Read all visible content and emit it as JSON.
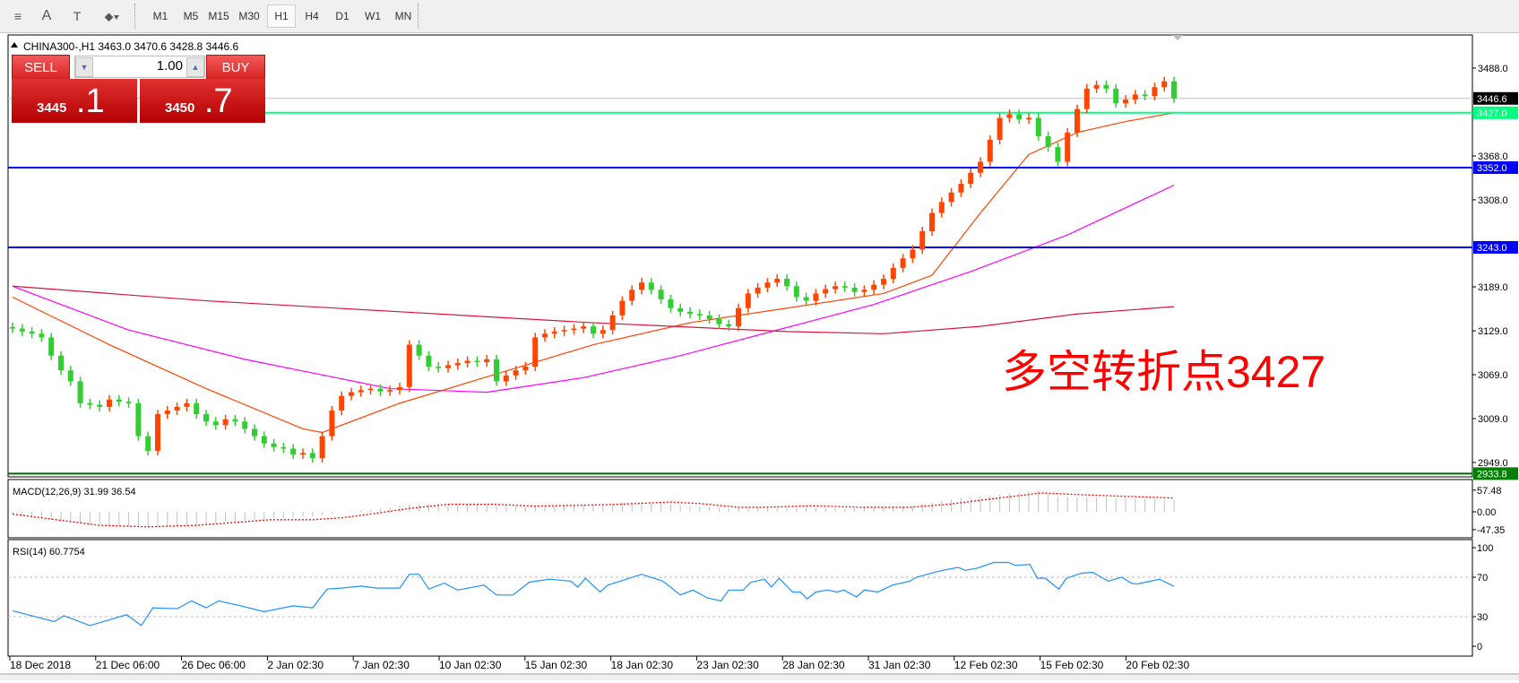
{
  "toolbar": {
    "tools": [
      {
        "name": "fibonacci-fan-icon",
        "glyph": "≡"
      },
      {
        "name": "text-icon",
        "glyph": "A"
      },
      {
        "name": "text-label-icon",
        "glyph": "T"
      },
      {
        "name": "arrows-icon",
        "glyph": "⬥▾"
      }
    ],
    "timeframes": [
      "M1",
      "M5",
      "M15",
      "M30",
      "H1",
      "H4",
      "D1",
      "W1",
      "MN"
    ],
    "active_timeframe": "H1"
  },
  "chart": {
    "header": "CHINA300-,H1  3463.0 3470.6 3428.8 3446.6",
    "annotation": "多空转折点3427",
    "annotation_color": "#ff0000"
  },
  "trade_panel": {
    "sell_label": "SELL",
    "buy_label": "BUY",
    "lot": "1.00",
    "sell_price_small": "3445",
    "sell_price_big": ".1",
    "buy_price_small": "3450",
    "buy_price_big": ".7"
  },
  "chart_data": [
    {
      "type": "candlestick",
      "symbol": "CHINA300-",
      "timeframe": "H1",
      "ohlc_current": {
        "open": 3463.0,
        "high": 3470.6,
        "low": 3428.8,
        "close": 3446.6
      },
      "price_ticks": [
        "3488.0",
        "3368.0",
        "3308.0",
        "3189.0",
        "3129.0",
        "3069.0",
        "3009.0",
        "2949.0"
      ],
      "ylim": [
        2926,
        3537
      ],
      "date_ticks": [
        "18 Dec 2018",
        "21 Dec 06:00",
        "26 Dec 06:00",
        "2 Jan 02:30",
        "7 Jan 02:30",
        "10 Jan 02:30",
        "15 Jan 02:30",
        "18 Jan 02:30",
        "23 Jan 02:30",
        "28 Jan 02:30",
        "31 Jan 02:30",
        "12 Feb 02:30",
        "15 Feb 02:30",
        "20 Feb 02:30"
      ],
      "up_color": "#ff4500",
      "down_color": "#32cd32",
      "close": [
        3132,
        3128,
        3125,
        3120,
        3095,
        3075,
        3060,
        3030,
        3028,
        3025,
        3035,
        3032,
        3030,
        2985,
        2965,
        3015,
        3020,
        3025,
        3030,
        3015,
        3005,
        3000,
        3008,
        3005,
        2995,
        2985,
        2975,
        2970,
        2968,
        2960,
        2962,
        2955,
        2985,
        3020,
        3040,
        3045,
        3048,
        3050,
        3046,
        3048,
        3052,
        3110,
        3095,
        3080,
        3078,
        3082,
        3085,
        3088,
        3086,
        3090,
        3060,
        3068,
        3075,
        3080,
        3120,
        3125,
        3128,
        3130,
        3132,
        3135,
        3125,
        3130,
        3150,
        3170,
        3185,
        3195,
        3185,
        3172,
        3160,
        3155,
        3152,
        3150,
        3145,
        3138,
        3135,
        3160,
        3180,
        3188,
        3195,
        3200,
        3190,
        3175,
        3170,
        3180,
        3186,
        3190,
        3188,
        3182,
        3185,
        3192,
        3200,
        3215,
        3228,
        3240,
        3265,
        3290,
        3305,
        3318,
        3330,
        3345,
        3360,
        3390,
        3420,
        3425,
        3418,
        3420,
        3395,
        3380,
        3360,
        3400,
        3432,
        3460,
        3465,
        3460,
        3440,
        3445,
        3452,
        3450,
        3462,
        3470,
        3446.6
      ],
      "moving_averages": [
        {
          "color": "#ff4500",
          "points": [
            [
              0,
              3175
            ],
            [
              10,
              3110
            ],
            [
              20,
              3050
            ],
            [
              30,
              2995
            ],
            [
              32,
              2990
            ],
            [
              40,
              3030
            ],
            [
              50,
              3070
            ],
            [
              60,
              3110
            ],
            [
              70,
              3140
            ],
            [
              80,
              3160
            ],
            [
              90,
              3180
            ],
            [
              95,
              3205
            ],
            [
              100,
              3290
            ],
            [
              105,
              3370
            ],
            [
              110,
              3400
            ],
            [
              115,
              3415
            ],
            [
              120,
              3427
            ]
          ]
        },
        {
          "color": "#ff00ff",
          "points": [
            [
              0,
              3190
            ],
            [
              12,
              3130
            ],
            [
              24,
              3090
            ],
            [
              39,
              3050
            ],
            [
              49,
              3045
            ],
            [
              59,
              3065
            ],
            [
              69,
              3095
            ],
            [
              79,
              3130
            ],
            [
              89,
              3165
            ],
            [
              99,
              3210
            ],
            [
              109,
              3260
            ],
            [
              120,
              3328
            ]
          ]
        },
        {
          "color": "#dc143c",
          "points": [
            [
              0,
              3190
            ],
            [
              20,
              3170
            ],
            [
              40,
              3155
            ],
            [
              60,
              3140
            ],
            [
              80,
              3128
            ],
            [
              90,
              3125
            ],
            [
              100,
              3135
            ],
            [
              110,
              3152
            ],
            [
              120,
              3162
            ]
          ]
        }
      ],
      "levels": [
        {
          "value": "3446.6",
          "color": "#c0c0c0",
          "label_bg": "#000000",
          "label_fg": "#ffffff"
        },
        {
          "value": "3427.0",
          "color": "#00ff7f",
          "label_bg": "#00ff7f",
          "label_fg": "#ffffff"
        },
        {
          "value": "3352.0",
          "color": "#0000ff",
          "label_bg": "#0000ff",
          "label_fg": "#ffffff"
        },
        {
          "value": "3243.0",
          "color": "#0000ff",
          "label_bg": "#0000ff",
          "label_fg": "#ffffff"
        },
        {
          "value": "2933.8",
          "color": "#006400",
          "label_bg": "#008000",
          "label_fg": "#ffffff"
        }
      ]
    },
    {
      "type": "bar",
      "title": "MACD(12,26,9) 31.99 36.54",
      "ticks": [
        "57.48",
        "0.00",
        "-47.35"
      ],
      "histogram_color": "#c0c0c0",
      "signal_color": "#ff0000",
      "histogram_points": [
        [
          0,
          -6
        ],
        [
          6.5,
          -30
        ],
        [
          14,
          -42
        ],
        [
          19,
          -36
        ],
        [
          24,
          -21
        ],
        [
          31.6,
          -12
        ],
        [
          34,
          0
        ],
        [
          37,
          6
        ],
        [
          41.6,
          21
        ],
        [
          46.7,
          21
        ],
        [
          53,
          12
        ],
        [
          59,
          18
        ],
        [
          65,
          26
        ],
        [
          70,
          16
        ],
        [
          74,
          9
        ],
        [
          77.7,
          12
        ],
        [
          87.7,
          9
        ],
        [
          92.7,
          15
        ],
        [
          97.7,
          36
        ],
        [
          104.6,
          53
        ],
        [
          106,
          57
        ],
        [
          107.7,
          40
        ],
        [
          113,
          38
        ],
        [
          120,
          31.99
        ]
      ],
      "signal_points": [
        [
          0,
          -6
        ],
        [
          9,
          -36
        ],
        [
          14,
          -40
        ],
        [
          19,
          -36
        ],
        [
          26.6,
          -21
        ],
        [
          31,
          -21
        ],
        [
          34,
          -16
        ],
        [
          37,
          -6
        ],
        [
          41,
          9
        ],
        [
          45,
          20
        ],
        [
          49.7,
          20
        ],
        [
          54,
          15
        ],
        [
          61.7,
          19
        ],
        [
          68,
          26
        ],
        [
          71,
          22
        ],
        [
          75,
          12
        ],
        [
          77.7,
          12
        ],
        [
          82.7,
          16
        ],
        [
          87.7,
          12
        ],
        [
          92.7,
          12
        ],
        [
          96.7,
          20
        ],
        [
          101.7,
          36
        ],
        [
          106.3,
          50
        ],
        [
          109,
          47
        ],
        [
          114,
          42
        ],
        [
          120,
          36.54
        ]
      ]
    },
    {
      "type": "line",
      "title": "RSI(14) 60.7754",
      "ticks": [
        "100",
        "70",
        "30",
        "0"
      ],
      "levels": [
        70,
        30
      ],
      "color": "#1e90ff",
      "points": [
        [
          0,
          36
        ],
        [
          4.3,
          25
        ],
        [
          5.3,
          31
        ],
        [
          8,
          21
        ],
        [
          11.8,
          32
        ],
        [
          13.3,
          21
        ],
        [
          14.5,
          39
        ],
        [
          17,
          38
        ],
        [
          18.5,
          46
        ],
        [
          20,
          39
        ],
        [
          21.3,
          46
        ],
        [
          23.6,
          41
        ],
        [
          26,
          35
        ],
        [
          29,
          41
        ],
        [
          31,
          39
        ],
        [
          32.5,
          58
        ],
        [
          34,
          59
        ],
        [
          36,
          61
        ],
        [
          37.6,
          59
        ],
        [
          40,
          59
        ],
        [
          41,
          73
        ],
        [
          42,
          73
        ],
        [
          43,
          58
        ],
        [
          44.6,
          64
        ],
        [
          46,
          57
        ],
        [
          48.7,
          62
        ],
        [
          50,
          52
        ],
        [
          51.7,
          52
        ],
        [
          53.4,
          65
        ],
        [
          55.5,
          68
        ],
        [
          57.7,
          66
        ],
        [
          58.4,
          60
        ],
        [
          59.2,
          69
        ],
        [
          60.7,
          55
        ],
        [
          61.5,
          62
        ],
        [
          65,
          73
        ],
        [
          67.2,
          66
        ],
        [
          69,
          52
        ],
        [
          70.3,
          57
        ],
        [
          71.8,
          49
        ],
        [
          73.2,
          46
        ],
        [
          74,
          57
        ],
        [
          75.5,
          57
        ],
        [
          76.3,
          65
        ],
        [
          77.7,
          68
        ],
        [
          78.4,
          60
        ],
        [
          79.2,
          69
        ],
        [
          80.6,
          55
        ],
        [
          81.4,
          55
        ],
        [
          82.1,
          48
        ],
        [
          83,
          55
        ],
        [
          84.2,
          57
        ],
        [
          85.2,
          55
        ],
        [
          85.9,
          57
        ],
        [
          87.2,
          50
        ],
        [
          88,
          57
        ],
        [
          89.4,
          55
        ],
        [
          90.9,
          62
        ],
        [
          92.7,
          66
        ],
        [
          93.4,
          70
        ],
        [
          94.9,
          74
        ],
        [
          96.1,
          77
        ],
        [
          97.7,
          80
        ],
        [
          98.4,
          77
        ],
        [
          99.6,
          79
        ],
        [
          101.4,
          85
        ],
        [
          102.9,
          85
        ],
        [
          103.6,
          82
        ],
        [
          105.1,
          83
        ],
        [
          105.9,
          69
        ],
        [
          106.7,
          69
        ],
        [
          108.1,
          58
        ],
        [
          108.9,
          69
        ],
        [
          110.4,
          74
        ],
        [
          111.6,
          75
        ],
        [
          113.2,
          66
        ],
        [
          114.6,
          70
        ],
        [
          115.6,
          64
        ],
        [
          116.1,
          63
        ],
        [
          117.6,
          66
        ],
        [
          118.5,
          68
        ],
        [
          120,
          60.7754
        ]
      ]
    }
  ]
}
